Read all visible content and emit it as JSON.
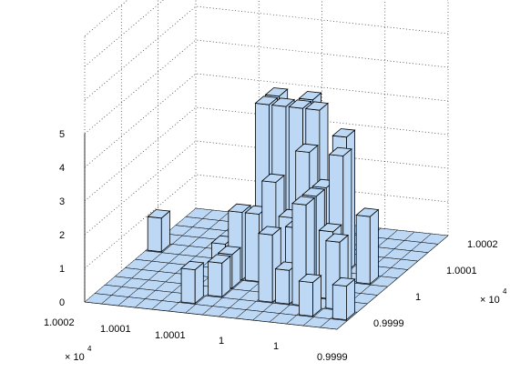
{
  "chart_data": {
    "type": "bar3",
    "title": "",
    "xlabel": "",
    "ylabel": "",
    "zlabel": "",
    "bar_color": "#bcd8f5",
    "edge_color": "#000000",
    "grid": "dotted",
    "zlim": [
      0,
      5
    ],
    "z_ticks": [
      "0",
      "1",
      "2",
      "3",
      "4",
      "5"
    ],
    "x_ticks": [
      "1.0002",
      "1.0001",
      "1.0001",
      "1",
      "1",
      "0.9999"
    ],
    "y_ticks": [
      "0.9999",
      "1",
      "1.0001",
      "1.0002"
    ],
    "x_multiplier": "× 10",
    "x_multiplier_exp": "4",
    "y_multiplier": "× 10",
    "y_multiplier_exp": "4",
    "nx": 15,
    "ny": 11,
    "heights": [
      [
        0,
        0,
        0,
        0,
        0,
        0,
        0,
        0,
        0,
        0,
        0
      ],
      [
        0,
        0,
        0,
        0,
        0,
        0,
        0,
        0,
        0,
        0,
        0
      ],
      [
        0,
        0,
        0,
        0,
        0,
        0,
        0,
        0,
        0,
        0,
        0
      ],
      [
        0,
        0,
        0,
        0,
        0,
        0,
        0,
        0,
        0,
        0,
        0
      ],
      [
        0,
        0,
        0,
        0,
        0,
        0,
        0,
        0,
        0,
        0,
        0
      ],
      [
        0,
        0,
        0,
        0,
        0,
        0,
        0,
        0,
        0,
        0,
        0
      ],
      [
        0,
        0,
        0,
        0,
        0,
        0,
        0,
        0,
        0,
        0,
        0
      ],
      [
        0,
        0,
        0,
        0,
        0,
        0,
        0,
        0,
        0,
        0,
        0
      ],
      [
        0,
        0,
        0,
        0,
        0,
        0,
        0,
        0,
        0,
        0,
        0
      ],
      [
        0,
        0,
        0,
        0,
        0,
        0,
        0,
        0,
        0,
        0,
        0
      ],
      [
        0,
        0,
        0,
        0,
        0,
        0,
        0,
        0,
        0,
        0,
        0
      ],
      [
        0,
        0,
        0,
        0,
        0,
        0,
        0,
        0,
        0,
        0,
        0
      ],
      [
        0,
        0,
        0,
        0,
        0,
        0,
        0,
        0,
        0,
        0,
        0
      ],
      [
        0,
        0,
        0,
        0,
        0,
        0,
        0,
        0,
        0,
        0,
        0
      ],
      [
        0,
        0,
        0,
        0,
        0,
        0,
        0,
        0,
        0,
        0,
        0
      ]
    ],
    "bars": [
      {
        "i": 0,
        "j": 6,
        "z": 1
      },
      {
        "i": 5,
        "j": 1,
        "z": 1
      },
      {
        "i": 5,
        "j": 4,
        "z": 1
      },
      {
        "i": 6,
        "j": 2,
        "z": 1
      },
      {
        "i": 6,
        "j": 3,
        "z": 1
      },
      {
        "i": 6,
        "j": 4,
        "z": 2
      },
      {
        "i": 7,
        "j": 4,
        "z": 2
      },
      {
        "i": 7,
        "j": 5,
        "z": 5
      },
      {
        "i": 7,
        "j": 6,
        "z": 5
      },
      {
        "i": 8,
        "j": 4,
        "z": 3
      },
      {
        "i": 8,
        "j": 5,
        "z": 5
      },
      {
        "i": 8,
        "j": 6,
        "z": 4
      },
      {
        "i": 9,
        "j": 2,
        "z": 2
      },
      {
        "i": 9,
        "j": 4,
        "z": 2
      },
      {
        "i": 9,
        "j": 5,
        "z": 5
      },
      {
        "i": 9,
        "j": 6,
        "z": 5
      },
      {
        "i": 10,
        "j": 2,
        "z": 1
      },
      {
        "i": 10,
        "j": 3,
        "z": 2
      },
      {
        "i": 10,
        "j": 4,
        "z": 4
      },
      {
        "i": 10,
        "j": 5,
        "z": 5
      },
      {
        "i": 11,
        "j": 2,
        "z": 3
      },
      {
        "i": 11,
        "j": 3,
        "z": 3
      },
      {
        "i": 11,
        "j": 4,
        "z": 3
      },
      {
        "i": 11,
        "j": 6,
        "z": 4
      },
      {
        "i": 12,
        "j": 1,
        "z": 1
      },
      {
        "i": 12,
        "j": 3,
        "z": 2
      },
      {
        "i": 12,
        "j": 4,
        "z": 4
      },
      {
        "i": 13,
        "j": 2,
        "z": 2
      },
      {
        "i": 13,
        "j": 5,
        "z": 2
      },
      {
        "i": 14,
        "j": 1,
        "z": 1
      }
    ]
  }
}
